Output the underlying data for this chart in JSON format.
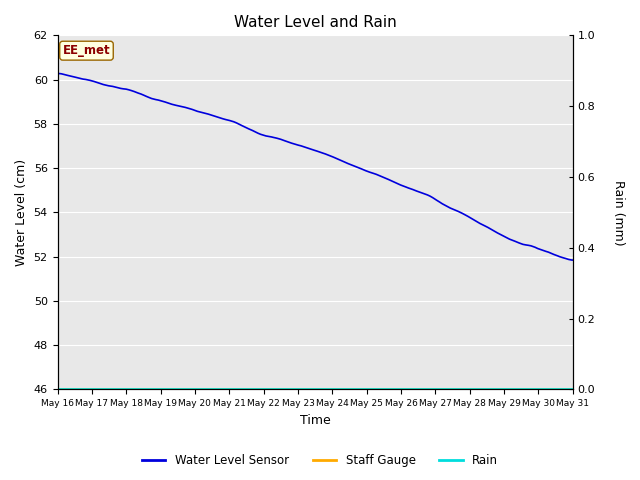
{
  "title": "Water Level and Rain",
  "xlabel": "Time",
  "ylabel_left": "Water Level (cm)",
  "ylabel_right": "Rain (mm)",
  "annotation_text": "EE_met",
  "ylim_left": [
    46,
    62
  ],
  "ylim_right": [
    0.0,
    1.0
  ],
  "yticks_left": [
    46,
    48,
    50,
    52,
    54,
    56,
    58,
    60,
    62
  ],
  "yticks_right": [
    0.0,
    0.2,
    0.4,
    0.6,
    0.8,
    1.0
  ],
  "xtick_labels": [
    "May 16",
    "May 17",
    "May 18",
    "May 19",
    "May 20",
    "May 21",
    "May 22",
    "May 23",
    "May 24",
    "May 25",
    "May 26",
    "May 27",
    "May 28",
    "May 29",
    "May 30",
    "May 31"
  ],
  "water_level_color": "#0000dd",
  "staff_gauge_color": "#ffaa00",
  "rain_color": "#00dddd",
  "bg_color": "#e8e8e8",
  "legend_entries": [
    "Water Level Sensor",
    "Staff Gauge",
    "Rain"
  ]
}
